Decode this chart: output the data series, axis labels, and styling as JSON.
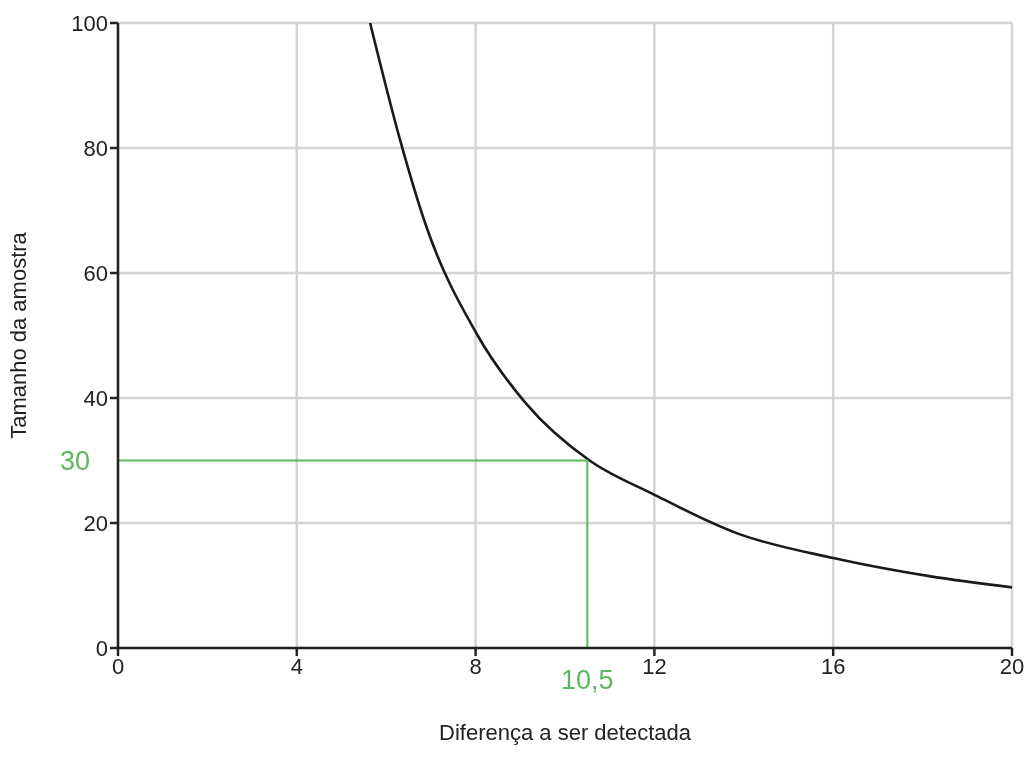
{
  "chart_data": {
    "type": "line",
    "xlabel": "Diferença a ser detectada",
    "ylabel": "Tamanho da amostra",
    "series": [
      {
        "color": "#1a1a1a",
        "x": [
          5.64,
          6.31,
          6.88,
          8.03,
          9.13,
          10.55,
          11.95,
          13.87,
          16.0,
          18.15,
          20
        ],
        "values": [
          100,
          81.3,
          67.8,
          50.2,
          39.1,
          30,
          24.7,
          18.3,
          14.4,
          11.5,
          9.7
        ]
      },
      {
        "color": "#5cb85c",
        "x": [
          0,
          10.5,
          10.5
        ],
        "values": [
          30,
          30,
          0
        ]
      }
    ],
    "annotations": [
      {
        "text": "30",
        "x": 0,
        "y": 30
      },
      {
        "text": "10,5",
        "x": 10.5,
        "y": 0
      }
    ],
    "xlim": [
      0,
      20
    ],
    "xticks": [
      0,
      4,
      8,
      12,
      16,
      20
    ],
    "ylim": [
      0,
      100
    ],
    "yticks": [
      0,
      20,
      40,
      60,
      80,
      100
    ],
    "grid": true,
    "marker": "none",
    "line_style": "solid"
  }
}
